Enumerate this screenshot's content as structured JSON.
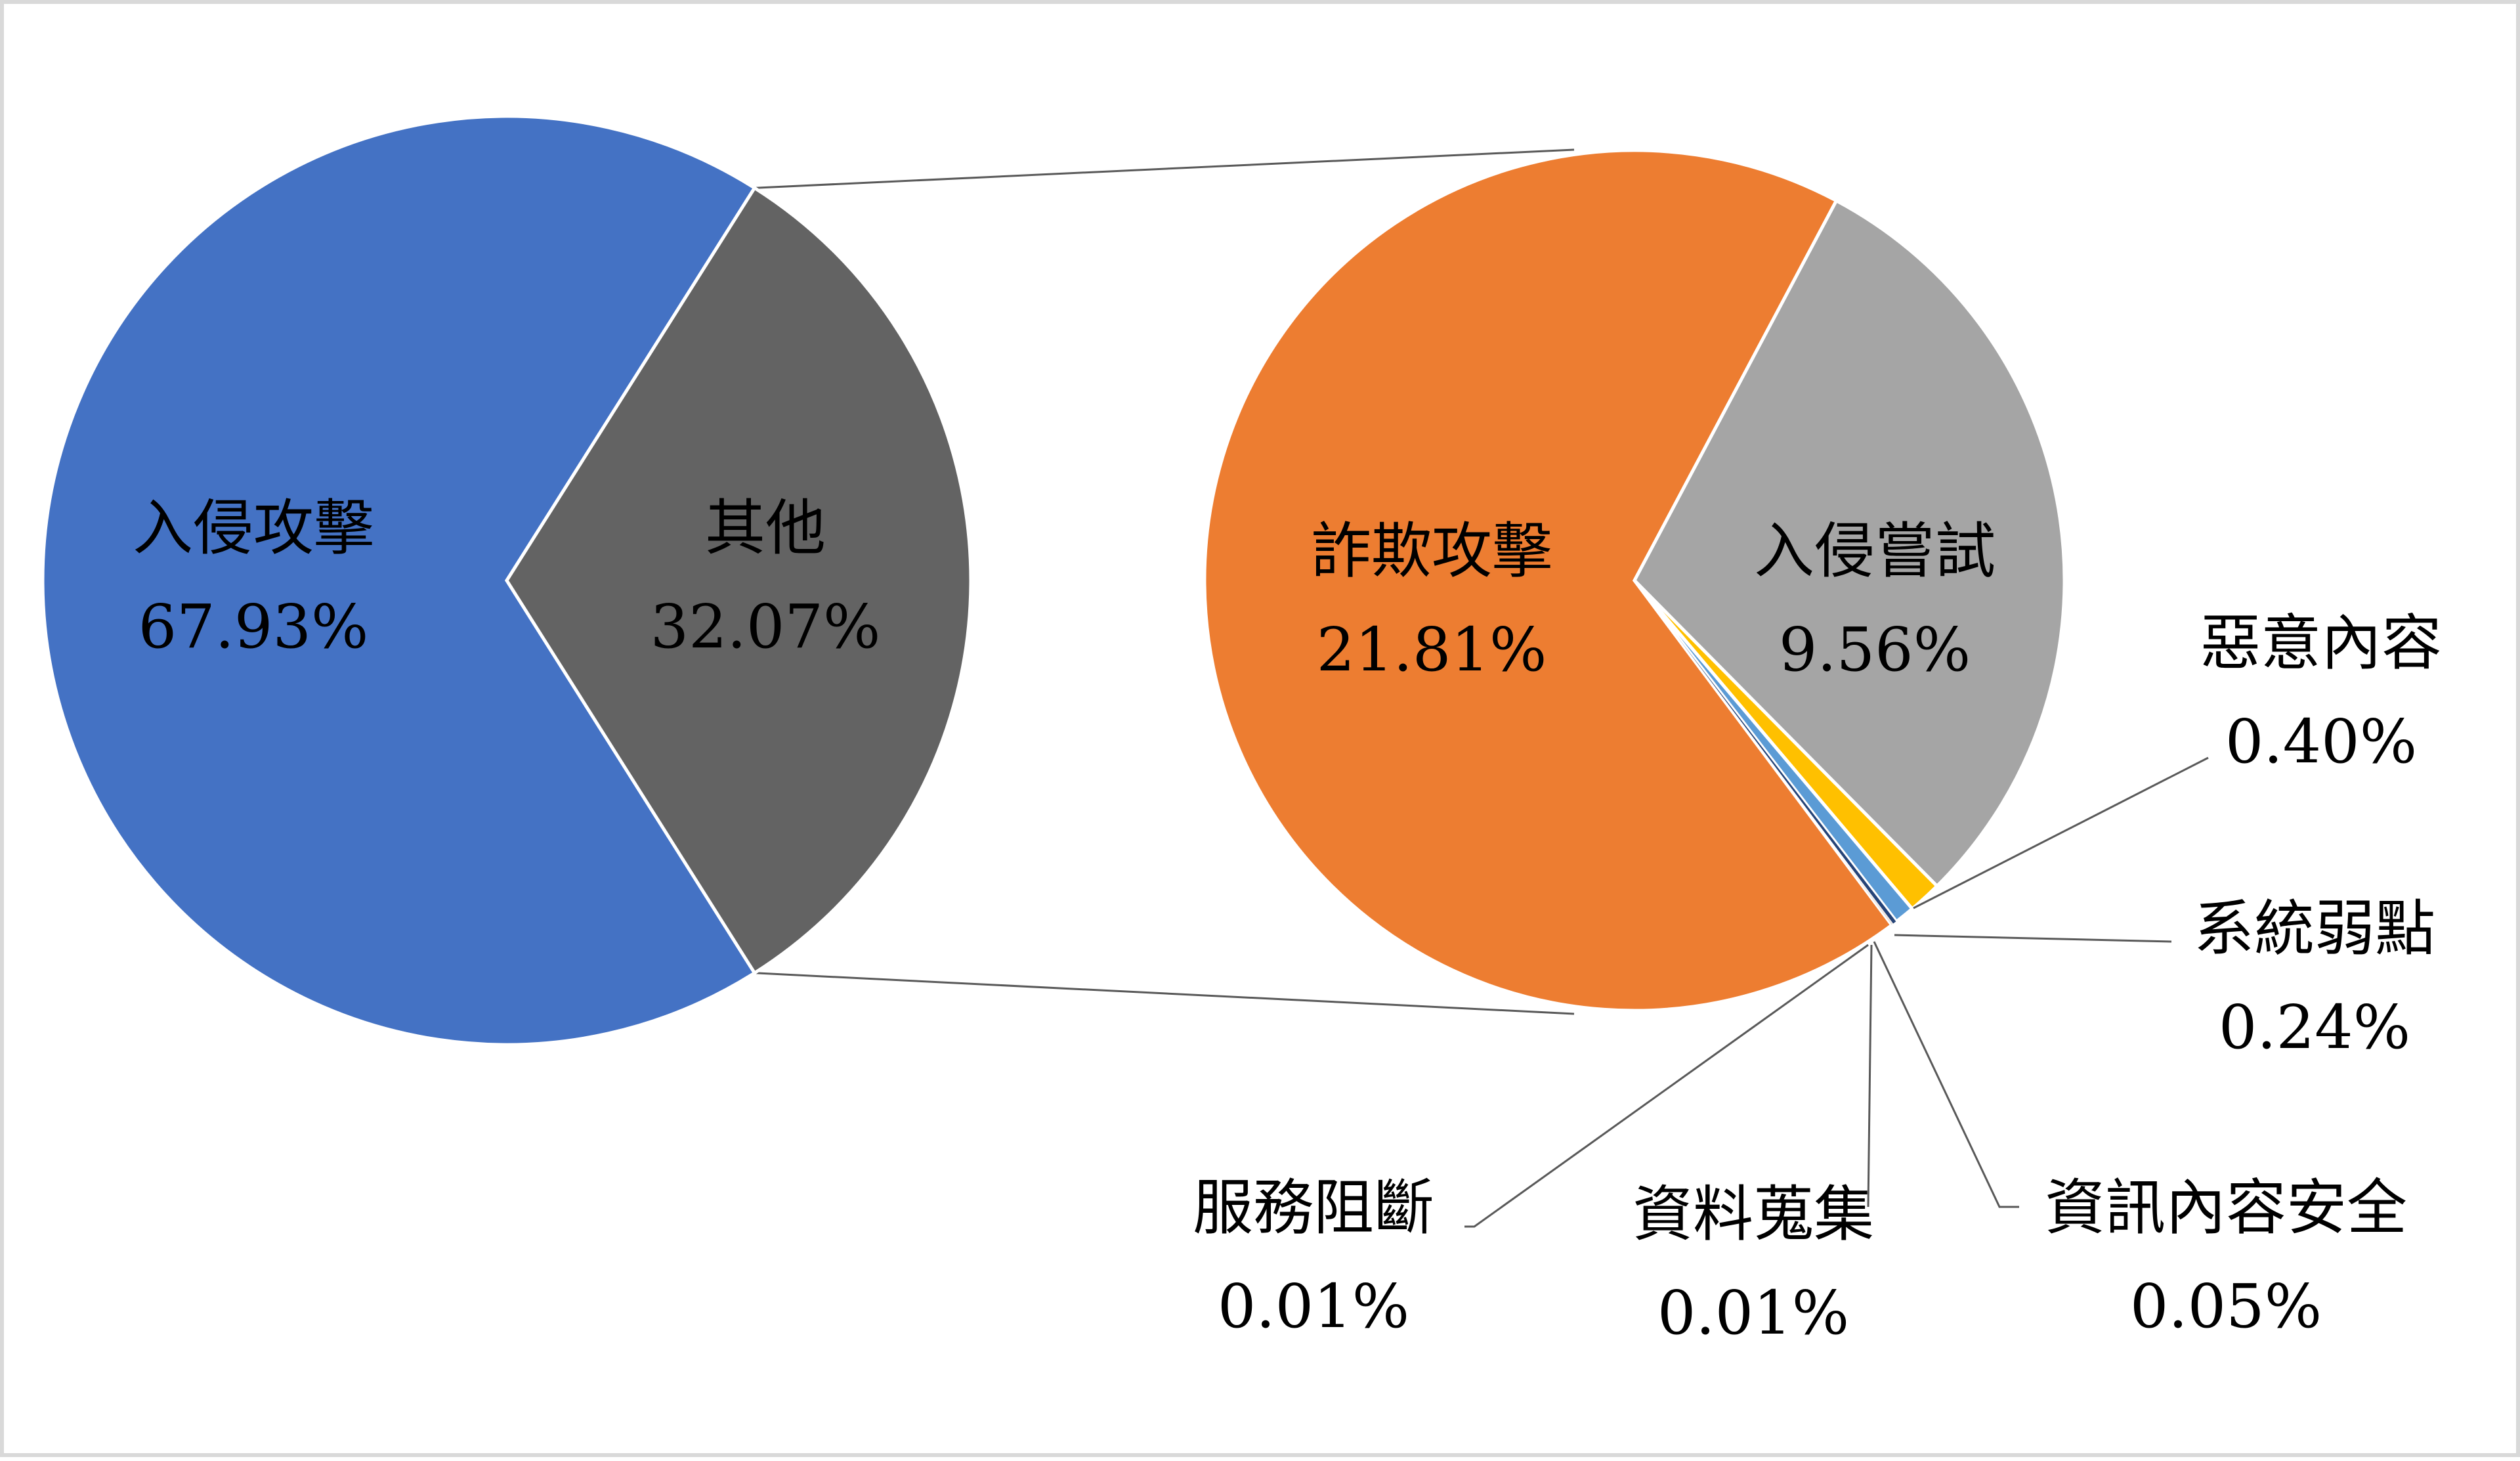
{
  "chart_data": {
    "type": "bar-of-pie",
    "primary": {
      "slices": [
        {
          "name": "入侵攻擊",
          "value": 67.93,
          "label": "67.93%",
          "color": "#4472c4"
        },
        {
          "name": "其他",
          "value": 32.07,
          "label": "32.07%",
          "color": "#636363"
        }
      ]
    },
    "secondary": {
      "slices": [
        {
          "name": "詐欺攻擊",
          "value": 21.81,
          "label": "21.81%",
          "color": "#ed7d31"
        },
        {
          "name": "入侵嘗試",
          "value": 9.56,
          "label": "9.56%",
          "color": "#a5a5a5"
        },
        {
          "name": "惡意內容",
          "value": 0.4,
          "label": "0.40%",
          "color": "#ffc000"
        },
        {
          "name": "系統弱點",
          "value": 0.24,
          "label": "0.24%",
          "color": "#5b9bd5"
        },
        {
          "name": "資訊內容安全",
          "value": 0.05,
          "label": "0.05%",
          "color": "#264478"
        },
        {
          "name": "資料蒐集",
          "value": 0.01,
          "label": "0.01%",
          "color": "#9e480e"
        },
        {
          "name": "服務阻斷",
          "value": 0.01,
          "label": "0.01%",
          "color": "#7f7f7f"
        }
      ]
    },
    "legend": "none",
    "data_labels": "category name and percentage"
  }
}
